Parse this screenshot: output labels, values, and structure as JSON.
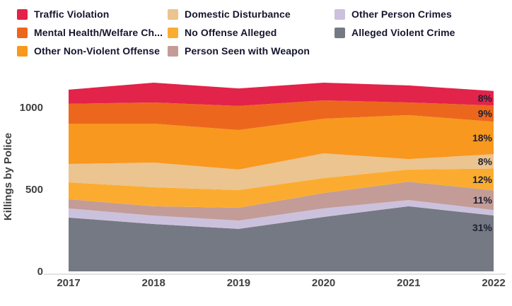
{
  "legend": {
    "items": [
      {
        "label": "Traffic Violation",
        "color": "#e2234a"
      },
      {
        "label": "Mental Health/Welfare Ch...",
        "color": "#ec671d"
      },
      {
        "label": "Other Non-Violent Offense",
        "color": "#f8981e"
      },
      {
        "label": "Domestic Disturbance",
        "color": "#ebc48f"
      },
      {
        "label": "No Offense Alleged",
        "color": "#fbac30"
      },
      {
        "label": "Person Seen with Weapon",
        "color": "#c39c97"
      },
      {
        "label": "Other Person Crimes",
        "color": "#cbc1dd"
      },
      {
        "label": "Alleged Violent Crime",
        "color": "#747983"
      }
    ]
  },
  "chart_data": {
    "type": "area",
    "stacked": true,
    "title": "",
    "xlabel": "",
    "ylabel": "Killings by Police",
    "categories": [
      "2017",
      "2018",
      "2019",
      "2020",
      "2021",
      "2022"
    ],
    "y_ticks": [
      0,
      500,
      1000
    ],
    "ylim": [
      0,
      1250
    ],
    "grid": false,
    "legend_position": "top",
    "series_bottom_to_top": [
      {
        "name": "Alleged Violent Crime",
        "color": "#747983",
        "values": [
          328,
          289,
          259,
          332,
          397,
          341
        ],
        "end_label": "31%"
      },
      {
        "name": "Other Person Crimes",
        "color": "#cbc1dd",
        "values": [
          56,
          51,
          51,
          52,
          38,
          33
        ],
        "end_label": ""
      },
      {
        "name": "Person Seen with Weapon",
        "color": "#c39c97",
        "values": [
          56,
          57,
          78,
          94,
          112,
          121
        ],
        "end_label": "11%"
      },
      {
        "name": "No Offense Alleged",
        "color": "#fbac30",
        "values": [
          103,
          116,
          108,
          91,
          74,
          132
        ],
        "end_label": "12%"
      },
      {
        "name": "Domestic Disturbance",
        "color": "#ebc48f",
        "values": [
          112,
          151,
          125,
          151,
          64,
          88
        ],
        "end_label": "8%"
      },
      {
        "name": "Other Non-Violent Offense",
        "color": "#f8981e",
        "values": [
          246,
          237,
          241,
          211,
          268,
          198
        ],
        "end_label": "18%"
      },
      {
        "name": "Mental Health/Welfare Ch...",
        "color": "#ec671d",
        "values": [
          121,
          129,
          147,
          112,
          77,
          99
        ],
        "end_label": "9%"
      },
      {
        "name": "Traffic Violation",
        "color": "#e2234a",
        "values": [
          86,
          121,
          107,
          108,
          104,
          88
        ],
        "end_label": "8%"
      }
    ],
    "end_labels_top_to_bottom": [
      "8%",
      "9%",
      "18%",
      "8%",
      "12%",
      "11%",
      "31%"
    ],
    "axis_line_color": "#d9d9d9"
  }
}
